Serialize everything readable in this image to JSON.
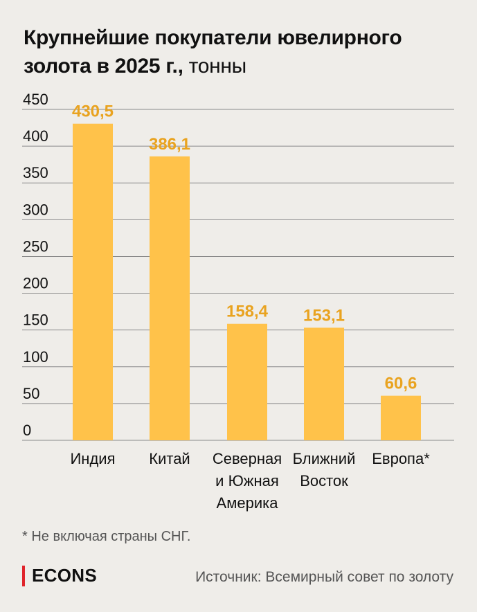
{
  "header": {
    "title": "Крупнейшие покупатели ювелирного золота в 2025 г.,",
    "unit": "тонны"
  },
  "chart_data": {
    "type": "bar",
    "categories": [
      [
        "Индия"
      ],
      [
        "Китай"
      ],
      [
        "Северная",
        "и Южная",
        "Америка"
      ],
      [
        "Ближний",
        "Восток"
      ],
      [
        "Европа*"
      ]
    ],
    "values": [
      430.5,
      386.1,
      158.4,
      153.1,
      60.6
    ],
    "value_labels": [
      "430,5",
      "386,1",
      "158,4",
      "153,1",
      "60,6"
    ],
    "y_ticks": [
      0,
      50,
      100,
      150,
      200,
      250,
      300,
      350,
      400,
      450
    ],
    "ylim": [
      0,
      450
    ],
    "grid": true,
    "colors": {
      "bar": "#FFC24A",
      "value_label": "#E9A320",
      "grid": "#8A8A8A"
    }
  },
  "footnote": "* Не включая страны СНГ.",
  "brand": "ECONS",
  "source": "Источник: Всемирный совет по золоту"
}
